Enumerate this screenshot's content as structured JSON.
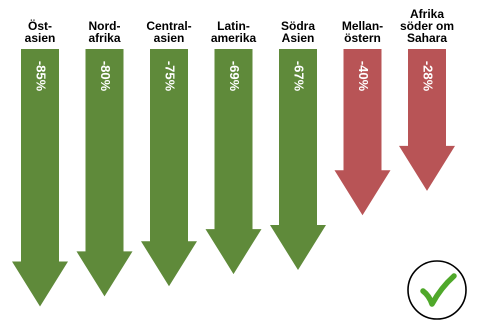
{
  "chart_data": {
    "type": "bar",
    "categories": [
      [
        "Öst-",
        "asien"
      ],
      [
        "Nord-",
        "afrika"
      ],
      [
        "Central-",
        "asien"
      ],
      [
        "Latin-",
        "amerika"
      ],
      [
        "Södra",
        "Asien"
      ],
      [
        "Mellan-",
        "östern"
      ],
      [
        "Afrika",
        "söder om",
        "Sahara"
      ]
    ],
    "values": [
      -85,
      -80,
      -75,
      -69,
      -67,
      -40,
      -28
    ],
    "value_labels": [
      "-85%",
      "-80%",
      "-75%",
      "-69%",
      "-67%",
      "-40%",
      "-28%"
    ],
    "colors": [
      "#5f8a3a",
      "#5f8a3a",
      "#5f8a3a",
      "#5f8a3a",
      "#5f8a3a",
      "#b85456",
      "#b85456"
    ],
    "ylim": [
      -85,
      0
    ],
    "grid": false,
    "legend": "none"
  },
  "colors": {
    "green": "#5f8a3a",
    "red": "#b85456",
    "check": "#4fa82a"
  },
  "badge": {
    "icon": "checkmark-icon"
  }
}
